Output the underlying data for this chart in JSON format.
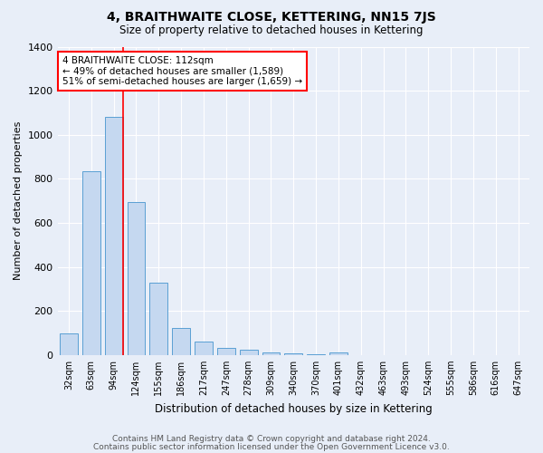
{
  "title": "4, BRAITHWAITE CLOSE, KETTERING, NN15 7JS",
  "subtitle": "Size of property relative to detached houses in Kettering",
  "xlabel": "Distribution of detached houses by size in Kettering",
  "ylabel": "Number of detached properties",
  "bar_color": "#c5d8f0",
  "bar_edge_color": "#5a9fd4",
  "background_color": "#e8eef8",
  "grid_color": "#ffffff",
  "categories": [
    "32sqm",
    "63sqm",
    "94sqm",
    "124sqm",
    "155sqm",
    "186sqm",
    "217sqm",
    "247sqm",
    "278sqm",
    "309sqm",
    "340sqm",
    "370sqm",
    "401sqm",
    "432sqm",
    "463sqm",
    "493sqm",
    "524sqm",
    "555sqm",
    "586sqm",
    "616sqm",
    "647sqm"
  ],
  "values": [
    97,
    836,
    1080,
    693,
    328,
    124,
    62,
    33,
    22,
    12,
    9,
    3,
    12,
    0,
    0,
    0,
    0,
    0,
    0,
    0,
    0
  ],
  "red_line_index": 2,
  "annotation_text": "4 BRAITHWAITE CLOSE: 112sqm\n← 49% of detached houses are smaller (1,589)\n51% of semi-detached houses are larger (1,659) →",
  "annotation_box_color": "white",
  "annotation_box_edge": "red",
  "ylim": [
    0,
    1400
  ],
  "yticks": [
    0,
    200,
    400,
    600,
    800,
    1000,
    1200,
    1400
  ],
  "footnote1": "Contains HM Land Registry data © Crown copyright and database right 2024.",
  "footnote2": "Contains public sector information licensed under the Open Government Licence v3.0."
}
